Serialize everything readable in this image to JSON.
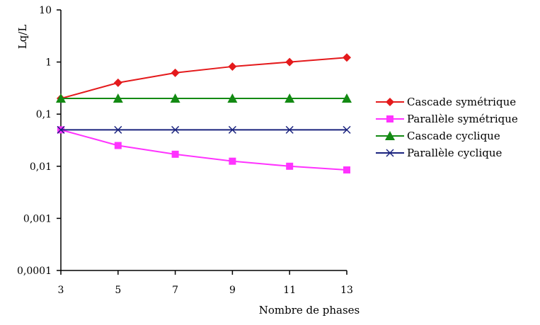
{
  "chart_data": {
    "type": "line",
    "x": [
      3,
      5,
      7,
      9,
      11,
      13
    ],
    "xticks": [
      "3",
      "5",
      "7",
      "9",
      "11",
      "13"
    ],
    "yticks": [
      "0,0001",
      "0,001",
      "0,01",
      "0,1",
      "1",
      "10"
    ],
    "ylim": [
      0.0001,
      10
    ],
    "xlim": [
      3,
      13
    ],
    "yscale": "log",
    "xlabel": "Nombre de phases",
    "ylabel": "Lq/L",
    "legend_position": "right",
    "grid": false,
    "series": [
      {
        "name": "Cascade symétrique",
        "color": "#e41a1c",
        "marker": "diamond",
        "values": [
          0.2,
          0.4,
          0.62,
          0.82,
          1.0,
          1.22
        ]
      },
      {
        "name": "Parallèle symétrique",
        "color": "#ff33ff",
        "marker": "square",
        "values": [
          0.05,
          0.025,
          0.017,
          0.0125,
          0.01,
          0.0085
        ]
      },
      {
        "name": "Cascade cyclique",
        "color": "#138a13",
        "marker": "triangle",
        "values": [
          0.2,
          0.2,
          0.2,
          0.2,
          0.2,
          0.2
        ]
      },
      {
        "name": "Parallèle cyclique",
        "color": "#1a237e",
        "marker": "x",
        "values": [
          0.05,
          0.05,
          0.05,
          0.05,
          0.05,
          0.05
        ]
      }
    ]
  }
}
